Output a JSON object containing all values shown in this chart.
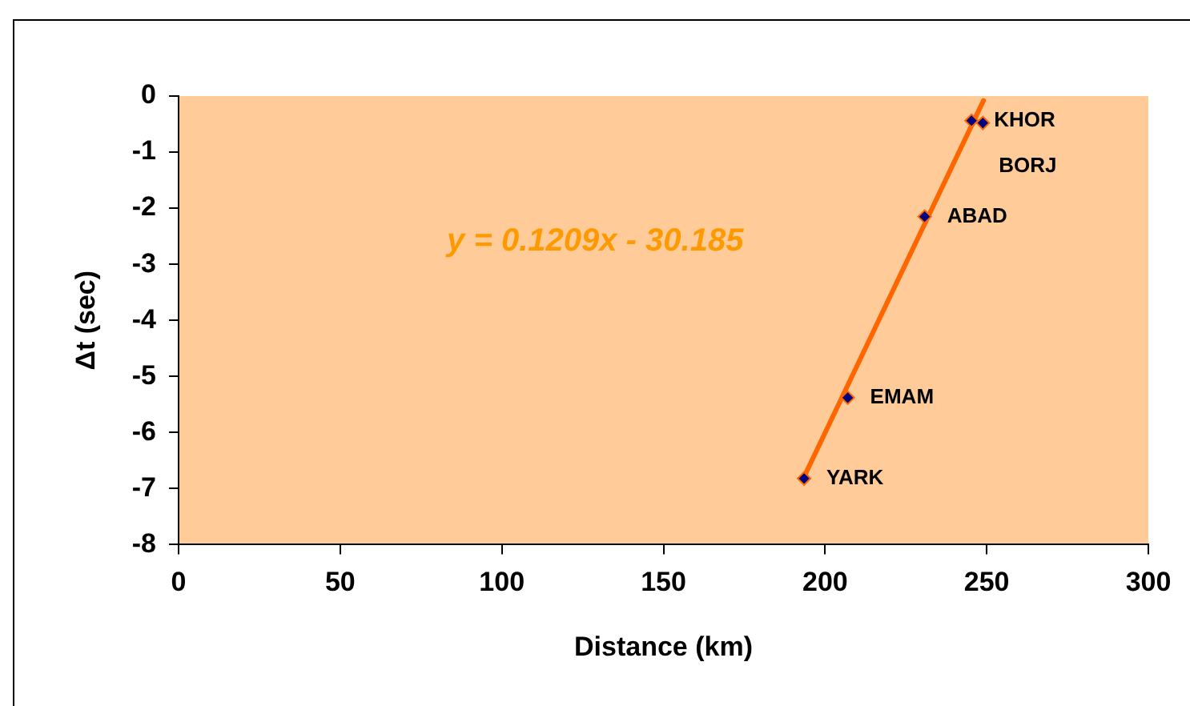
{
  "chart_data": {
    "type": "scatter",
    "xlabel": "Distance (km)",
    "ylabel": "Δt (sec)",
    "xlim": [
      0,
      300
    ],
    "xticks": [
      0,
      50,
      100,
      150,
      200,
      250,
      300
    ],
    "ylim": [
      -8,
      0
    ],
    "yticks": [
      0,
      -1,
      -2,
      -3,
      -4,
      -5,
      -6,
      -7,
      -8
    ],
    "grid": false,
    "legend": false,
    "series": [
      {
        "marker": "diamond",
        "color": "#000080",
        "x": [
          245.3,
          248.8,
          230.8,
          207,
          193.5
        ],
        "values": [
          -0.44,
          -0.48,
          -2.15,
          -5.38,
          -6.82
        ]
      },
      {
        "type": "line",
        "color": "#ff6600",
        "x": [
          193.5,
          249
        ],
        "values": [
          -6.79,
          -0.08
        ]
      }
    ],
    "annotations": [
      "y = 0.1209x - 30.185",
      {
        "text": "KHOR",
        "x": 245.3,
        "y": -0.44
      },
      {
        "text": "BORJ",
        "x": 248.8,
        "y": -0.48
      },
      {
        "text": "ABAD",
        "x": 230.8,
        "y": -2.15
      },
      {
        "text": "EMAM",
        "x": 207,
        "y": -5.38
      },
      {
        "text": "YARK",
        "x": 193.5,
        "y": -6.82
      }
    ]
  }
}
